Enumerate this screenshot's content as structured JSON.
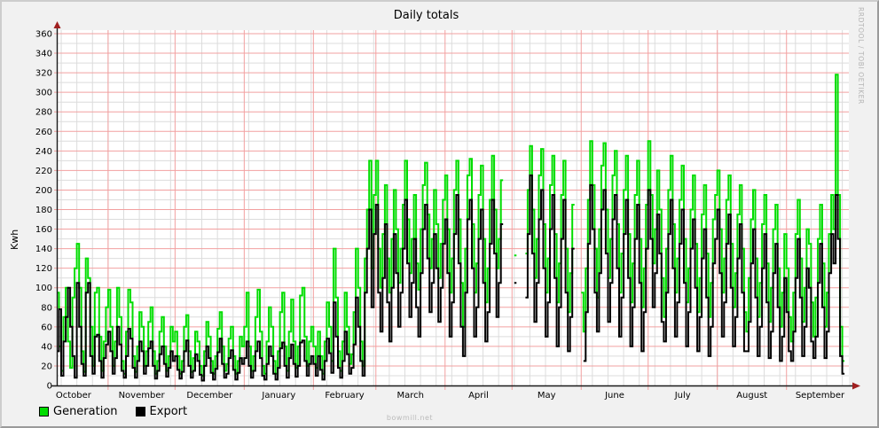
{
  "header": {
    "title": "Daily totals"
  },
  "y_axis": {
    "label": "Kwh"
  },
  "legend": {
    "items": [
      {
        "label": "Generation",
        "color": "#00dd00"
      },
      {
        "label": "Export",
        "color": "#000000"
      }
    ]
  },
  "watermarks": {
    "bottom": "bowmill.net",
    "right": "RRDTOOL / TOBI OETIKER"
  },
  "colors": {
    "background": "#f1f1f1",
    "canvas": "#ffffff",
    "grid_major": "#f2a0a0",
    "grid_minor": "#dcdcdc",
    "axis": "#1a1a1a",
    "arrow": "#a02020",
    "text": "#000000"
  },
  "chart_data": {
    "type": "line",
    "title": "Daily totals",
    "xlabel": "",
    "ylabel": "Kwh",
    "ylim": [
      0,
      360
    ],
    "y_tick_step": 20,
    "y_ticks": [
      0,
      20,
      40,
      60,
      80,
      100,
      120,
      140,
      160,
      180,
      200,
      220,
      240,
      260,
      280,
      300,
      320,
      340,
      360
    ],
    "x_months": [
      "October",
      "November",
      "December",
      "January",
      "February",
      "March",
      "April",
      "May",
      "June",
      "July",
      "August",
      "September"
    ],
    "days_per_month": [
      31,
      30,
      31,
      31,
      28,
      31,
      30,
      31,
      30,
      31,
      31,
      30
    ],
    "first_day_offset": -8,
    "grid": true,
    "legend_position": "bottom-left",
    "series": [
      {
        "name": "Generation",
        "color": "#00dd00",
        "values": [
          95,
          40,
          15,
          70,
          100,
          45,
          18,
          90,
          120,
          145,
          100,
          35,
          14,
          130,
          110,
          60,
          20,
          95,
          100,
          50,
          15,
          45,
          80,
          98,
          60,
          20,
          45,
          100,
          70,
          25,
          12,
          55,
          98,
          85,
          30,
          14,
          40,
          75,
          60,
          20,
          35,
          65,
          80,
          35,
          12,
          25,
          55,
          70,
          40,
          15,
          30,
          60,
          45,
          55,
          30,
          12,
          25,
          60,
          72,
          35,
          14,
          28,
          55,
          45,
          20,
          10,
          35,
          65,
          50,
          25,
          12,
          30,
          58,
          75,
          40,
          15,
          22,
          48,
          60,
          30,
          12,
          25,
          50,
          40,
          60,
          95,
          40,
          15,
          30,
          70,
          98,
          55,
          20,
          12,
          45,
          80,
          60,
          25,
          12,
          35,
          75,
          95,
          40,
          15,
          55,
          88,
          45,
          18,
          40,
          92,
          100,
          50,
          20,
          45,
          60,
          40,
          18,
          55,
          30,
          12,
          45,
          85,
          60,
          25,
          140,
          90,
          35,
          15,
          45,
          95,
          60,
          22,
          32,
          75,
          140,
          100,
          45,
          20,
          130,
          180,
          230,
          120,
          195,
          230,
          140,
          100,
          155,
          205,
          130,
          95,
          150,
          200,
          160,
          105,
          140,
          185,
          230,
          170,
          115,
          150,
          195,
          125,
          98,
          160,
          205,
          228,
          175,
          120,
          150,
          200,
          165,
          110,
          145,
          190,
          215,
          160,
          95,
          130,
          200,
          230,
          170,
          105,
          60,
          140,
          215,
          232,
          165,
          95,
          125,
          195,
          225,
          150,
          85,
          120,
          190,
          235,
          180,
          120,
          150,
          210,
          null,
          null,
          null,
          null,
          null,
          133,
          null,
          null,
          null,
          null,
          135,
          200,
          245,
          180,
          110,
          150,
          215,
          242,
          165,
          95,
          130,
          205,
          235,
          155,
          85,
          125,
          195,
          230,
          140,
          75,
          115,
          185,
          null,
          null,
          null,
          95,
          55,
          120,
          190,
          250,
          205,
          140,
          90,
          160,
          225,
          248,
          180,
          110,
          150,
          215,
          240,
          165,
          95,
          135,
          200,
          235,
          155,
          85,
          125,
          195,
          230,
          150,
          80,
          120,
          185,
          250,
          195,
          125,
          160,
          220,
          180,
          110,
          70,
          140,
          200,
          235,
          165,
          95,
          130,
          190,
          225,
          150,
          85,
          120,
          180,
          215,
          145,
          75,
          110,
          175,
          205,
          135,
          70,
          105,
          170,
          195,
          220,
          160,
          95,
          130,
          190,
          215,
          145,
          80,
          115,
          175,
          205,
          140,
          75,
          55,
          110,
          170,
          200,
          130,
          70,
          105,
          165,
          195,
          125,
          65,
          100,
          160,
          185,
          120,
          60,
          95,
          155,
          120,
          70,
          45,
          95,
          155,
          190,
          130,
          65,
          100,
          160,
          145,
          85,
          50,
          90,
          150,
          185,
          125,
          60,
          95,
          155,
          195,
          160,
          318,
          195,
          60,
          25
        ]
      },
      {
        "name": "Export",
        "color": "#000000",
        "values": [
          35,
          78,
          10,
          45,
          70,
          100,
          60,
          30,
          8,
          105,
          60,
          22,
          10,
          95,
          105,
          30,
          12,
          50,
          52,
          25,
          8,
          28,
          42,
          55,
          35,
          12,
          28,
          60,
          42,
          15,
          8,
          30,
          58,
          48,
          18,
          8,
          25,
          45,
          35,
          12,
          20,
          38,
          45,
          20,
          7,
          15,
          32,
          40,
          22,
          9,
          18,
          35,
          25,
          30,
          16,
          7,
          14,
          35,
          46,
          20,
          8,
          15,
          32,
          25,
          11,
          5,
          20,
          40,
          28,
          13,
          6,
          17,
          34,
          48,
          22,
          8,
          12,
          28,
          36,
          16,
          6,
          13,
          28,
          22,
          28,
          45,
          20,
          8,
          15,
          35,
          45,
          28,
          10,
          6,
          22,
          40,
          30,
          12,
          6,
          18,
          38,
          44,
          20,
          8,
          28,
          42,
          22,
          9,
          20,
          44,
          46,
          25,
          10,
          22,
          30,
          22,
          10,
          30,
          16,
          6,
          25,
          48,
          33,
          13,
          85,
          50,
          18,
          8,
          25,
          55,
          32,
          12,
          18,
          42,
          90,
          60,
          25,
          10,
          95,
          140,
          180,
          80,
          155,
          185,
          95,
          55,
          110,
          165,
          85,
          45,
          100,
          155,
          115,
          60,
          95,
          140,
          190,
          125,
          70,
          105,
          150,
          80,
          50,
          115,
          160,
          185,
          130,
          75,
          105,
          155,
          120,
          65,
          100,
          145,
          170,
          115,
          50,
          85,
          155,
          195,
          125,
          60,
          30,
          95,
          170,
          190,
          120,
          50,
          80,
          150,
          180,
          105,
          45,
          75,
          145,
          190,
          135,
          70,
          105,
          165,
          null,
          null,
          null,
          null,
          null,
          105,
          null,
          null,
          null,
          null,
          90,
          155,
          215,
          135,
          65,
          105,
          170,
          200,
          120,
          50,
          85,
          160,
          195,
          110,
          40,
          80,
          150,
          190,
          95,
          35,
          70,
          140,
          null,
          null,
          null,
          null,
          25,
          75,
          145,
          205,
          160,
          95,
          55,
          115,
          180,
          200,
          135,
          65,
          105,
          170,
          195,
          120,
          50,
          90,
          155,
          190,
          110,
          40,
          80,
          150,
          185,
          105,
          35,
          75,
          140,
          200,
          150,
          80,
          115,
          175,
          135,
          65,
          45,
          95,
          155,
          190,
          120,
          50,
          85,
          145,
          180,
          105,
          40,
          75,
          140,
          170,
          100,
          35,
          70,
          130,
          160,
          90,
          30,
          60,
          125,
          150,
          180,
          115,
          50,
          85,
          145,
          175,
          100,
          40,
          70,
          130,
          165,
          95,
          35,
          35,
          65,
          125,
          160,
          90,
          30,
          60,
          120,
          155,
          85,
          28,
          55,
          115,
          145,
          80,
          25,
          50,
          110,
          75,
          35,
          25,
          55,
          110,
          150,
          90,
          30,
          60,
          120,
          100,
          45,
          28,
          50,
          105,
          145,
          80,
          28,
          55,
          115,
          155,
          125,
          195,
          150,
          30,
          12
        ]
      }
    ]
  }
}
